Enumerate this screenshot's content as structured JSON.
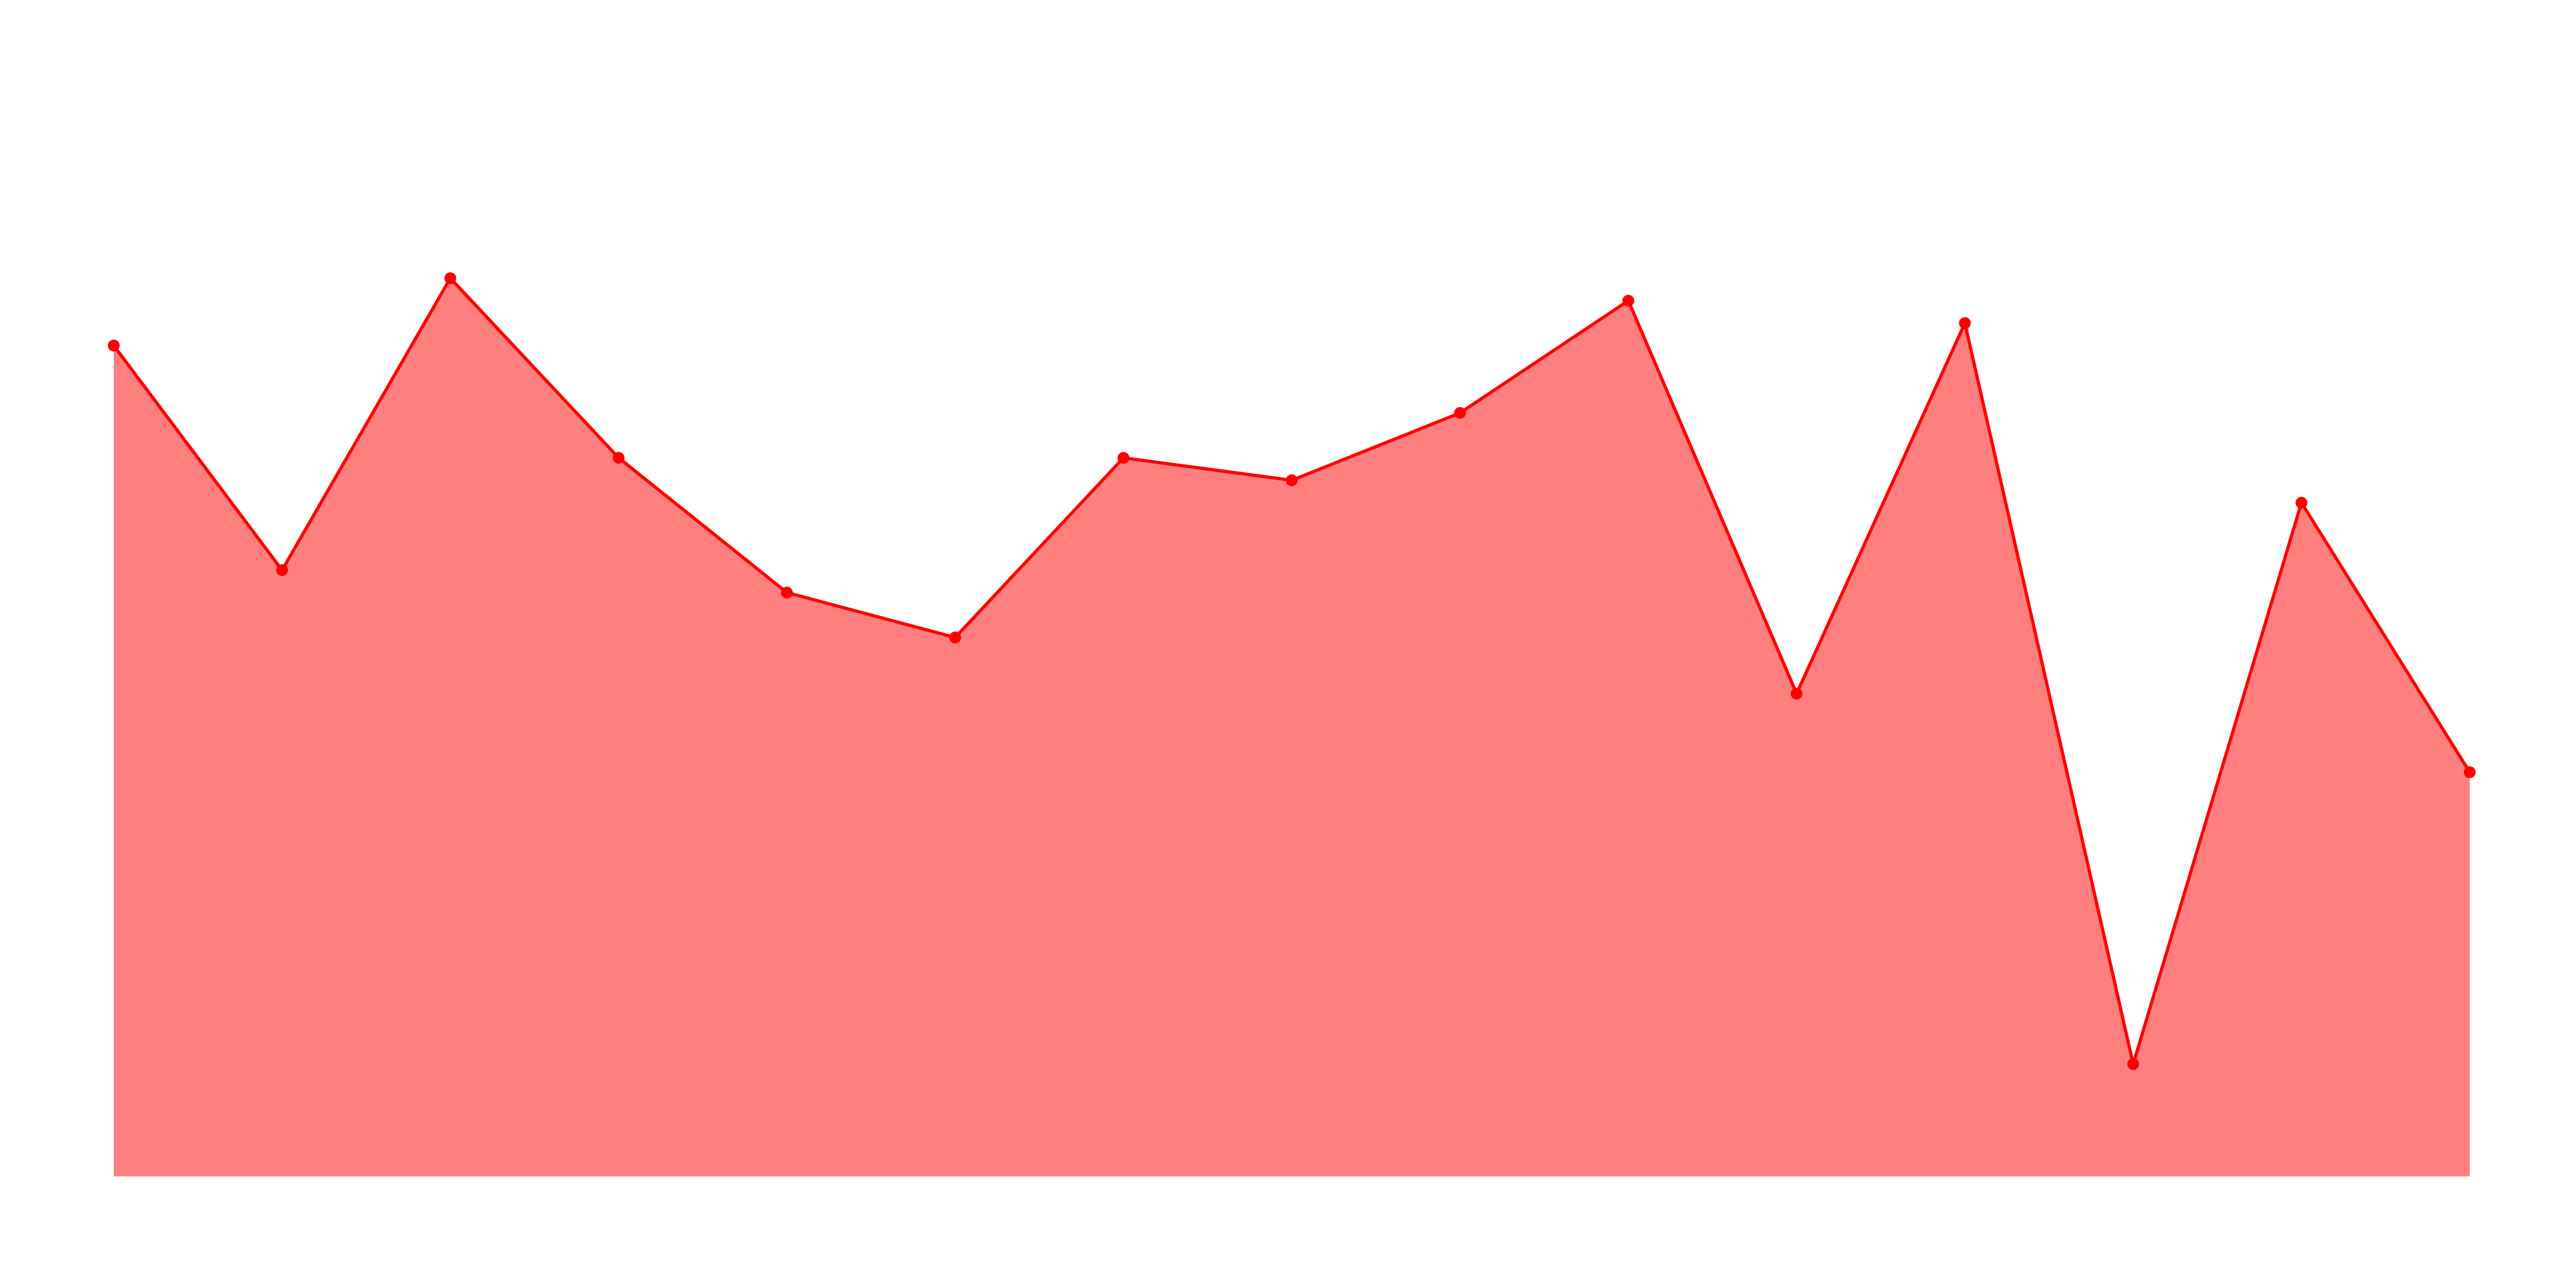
{
  "chart_data": {
    "type": "area",
    "x": [
      0,
      1,
      2,
      3,
      4,
      5,
      6,
      7,
      8,
      9,
      10,
      11,
      12,
      13,
      14
    ],
    "values": [
      74,
      54,
      80,
      64,
      52,
      48,
      64,
      62,
      68,
      78,
      43,
      76,
      10,
      60,
      36
    ],
    "xlim": [
      0,
      14
    ],
    "ylim": [
      0,
      100
    ],
    "grid": false,
    "axes_visible": false,
    "markers": true,
    "fill_color": "#ff7f7f",
    "line_color": "#ff0000",
    "marker_color": "#ff0000",
    "title": "",
    "xlabel": "",
    "ylabel": ""
  }
}
